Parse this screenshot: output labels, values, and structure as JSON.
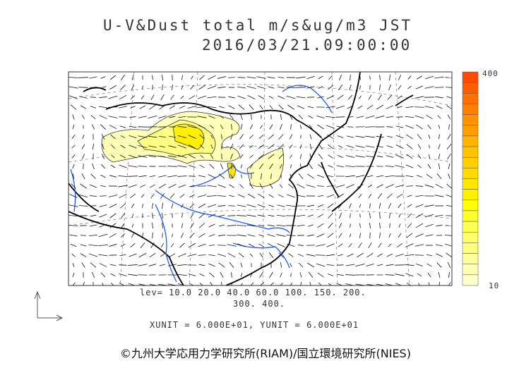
{
  "title": {
    "line1": "U-V&Dust total m/s&ug/m3 JST",
    "line2": "2016/03/21.09:00:00"
  },
  "contour_levels": {
    "line1": "lev= 10.0 20.0 40.0 60.0 100. 150. 200.",
    "line2": "300. 400."
  },
  "units": "XUNIT = 6.000E+01, YUNIT = 6.000E+01",
  "colorbar": {
    "max_label": "400",
    "min_label": "10",
    "colors": [
      "#ff4a00",
      "#ff5c00",
      "#ff7000",
      "#ff7e00",
      "#ff9200",
      "#ff9c00",
      "#ffb400",
      "#ffc400",
      "#ffd000",
      "#ffdc00",
      "#ffe600",
      "#ffef00",
      "#ffff00",
      "#ffff2e",
      "#ffff50",
      "#ffff6a",
      "#ffff82",
      "#ffff9c",
      "#ffffb4",
      "#ffffcc"
    ]
  },
  "credit": "©九州大学応用力学研究所(RIAM)/国立環境研究所(NIES)",
  "icons": [
    "unit-vector-arrow-icon"
  ]
}
